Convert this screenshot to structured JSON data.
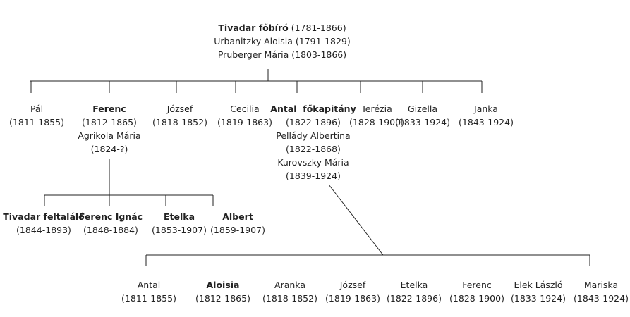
{
  "root": {
    "name": "Tivadar főbíró",
    "dates": "(1781-1866)",
    "spouses": [
      {
        "name": "Urbanitzky Aloisia",
        "dates": "(1791-1829)"
      },
      {
        "name": "Pruberger Mária",
        "dates": "(1803-1866)"
      }
    ]
  },
  "children": [
    {
      "name": "Pál",
      "dates": "(1811-1855)"
    },
    {
      "name": "Ferenc",
      "dates": "(1812-1865)",
      "spouses": [
        {
          "name": "Agrikola Mária",
          "dates": "(1824-?)"
        }
      ],
      "children": [
        {
          "name": "Tivadar feltaláló",
          "dates": "(1844-1893)"
        },
        {
          "name": "Ferenc Ignác",
          "dates": "(1848-1884)"
        },
        {
          "name": "Etelka",
          "dates": "(1853-1907)"
        },
        {
          "name": "Albert",
          "dates": "(1859-1907)"
        }
      ]
    },
    {
      "name": "József",
      "dates": "(1818-1852)"
    },
    {
      "name": "Cecilia",
      "dates": "(1819-1863)"
    },
    {
      "name": "Antal  főkapitány",
      "dates": "(1822-1896)",
      "spouses": [
        {
          "name": "Pellády Albertina",
          "dates": "(1822-1868)"
        },
        {
          "name": "Kurovszky Mária",
          "dates": "(1839-1924)"
        }
      ],
      "children": [
        {
          "name": "Antal",
          "dates": "(1811-1855)"
        },
        {
          "name": "Aloisia",
          "dates": "(1812-1865)"
        },
        {
          "name": "Aranka",
          "dates": "(1818-1852)"
        },
        {
          "name": "József",
          "dates": "(1819-1863)"
        },
        {
          "name": "Etelka",
          "dates": "(1822-1896)"
        },
        {
          "name": "Ferenc",
          "dates": "(1828-1900)"
        },
        {
          "name": "Elek László",
          "dates": "(1833-1924)"
        },
        {
          "name": "Mariska",
          "dates": "(1843-1924)"
        }
      ]
    },
    {
      "name": "Terézia",
      "dates": "(1828-1900)"
    },
    {
      "name": "Gizella",
      "dates": "(1833-1924)"
    },
    {
      "name": "Janka",
      "dates": "(1843-1924)"
    }
  ]
}
